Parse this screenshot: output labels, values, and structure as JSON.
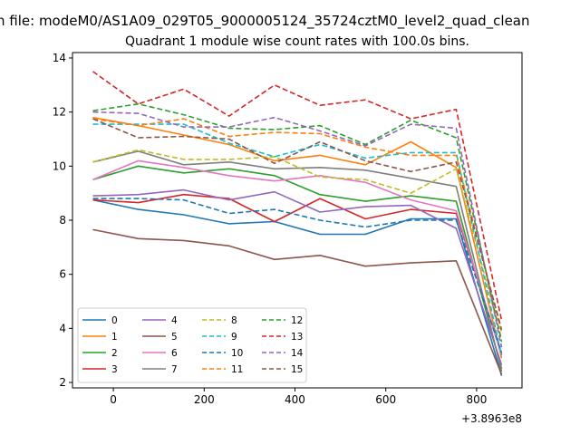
{
  "chart_data": {
    "type": "line",
    "suptitle": "n file: modeM0/AS1A09_029T05_9000005124_35724cztM0_level2_quad_clean",
    "title": "Quadrant 1 module wise count rates with 100.0s bins.",
    "xlabel": "",
    "ylabel": "",
    "x_offset_label": "+3.8963e8",
    "xlim": [
      -90,
      900
    ],
    "ylim": [
      1.8,
      14.2
    ],
    "x_ticks": [
      0,
      200,
      400,
      600,
      800
    ],
    "y_ticks": [
      2,
      4,
      6,
      8,
      10,
      12,
      14
    ],
    "grid": false,
    "legend_position": "lower-left",
    "x": [
      -45,
      55,
      155,
      255,
      355,
      455,
      555,
      655,
      755,
      855
    ],
    "series": [
      {
        "name": "0",
        "color": "#1f77b4",
        "dash": "solid",
        "values": [
          8.75,
          8.4,
          8.2,
          7.87,
          7.95,
          7.48,
          7.48,
          8.05,
          8.05,
          2.25
        ]
      },
      {
        "name": "1",
        "color": "#ff7f0e",
        "dash": "solid",
        "values": [
          11.8,
          11.5,
          11.15,
          10.8,
          10.2,
          10.4,
          10.05,
          10.9,
          9.95,
          2.9
        ]
      },
      {
        "name": "2",
        "color": "#2ca02c",
        "dash": "solid",
        "values": [
          9.5,
          10.0,
          9.75,
          9.9,
          9.65,
          8.95,
          8.7,
          8.9,
          8.7,
          2.5
        ]
      },
      {
        "name": "3",
        "color": "#d62728",
        "dash": "solid",
        "values": [
          8.75,
          8.65,
          8.95,
          8.8,
          7.95,
          8.8,
          8.05,
          8.4,
          8.25,
          3.05
        ]
      },
      {
        "name": "4",
        "color": "#9467bd",
        "dash": "solid",
        "values": [
          8.9,
          8.95,
          9.12,
          8.75,
          9.05,
          8.3,
          8.5,
          8.55,
          7.7,
          2.65
        ]
      },
      {
        "name": "5",
        "color": "#8c564b",
        "dash": "solid",
        "values": [
          7.65,
          7.32,
          7.25,
          7.05,
          6.55,
          6.7,
          6.3,
          6.42,
          6.5,
          2.3
        ]
      },
      {
        "name": "6",
        "color": "#e377c2",
        "dash": "solid",
        "values": [
          9.5,
          10.2,
          9.95,
          9.65,
          9.45,
          9.65,
          9.4,
          8.75,
          8.35,
          3.0
        ]
      },
      {
        "name": "7",
        "color": "#7f7f7f",
        "dash": "solid",
        "values": [
          10.15,
          10.55,
          10.05,
          10.15,
          9.9,
          9.95,
          9.85,
          9.55,
          9.25,
          2.4
        ]
      },
      {
        "name": "8",
        "color": "#bcbd22",
        "dash": "dashed",
        "values": [
          10.15,
          10.6,
          10.25,
          10.25,
          10.35,
          9.6,
          9.5,
          9.0,
          9.9,
          3.6
        ]
      },
      {
        "name": "9",
        "color": "#17becf",
        "dash": "dashed",
        "values": [
          11.55,
          11.55,
          11.55,
          10.85,
          10.35,
          10.8,
          10.3,
          10.5,
          10.5,
          3.0
        ]
      },
      {
        "name": "10",
        "color": "#1f77b4",
        "dash": "dashed",
        "values": [
          8.8,
          8.8,
          8.75,
          8.25,
          8.4,
          8.0,
          7.75,
          8.0,
          8.0,
          3.1
        ]
      },
      {
        "name": "11",
        "color": "#ff7f0e",
        "dash": "dashed",
        "values": [
          11.75,
          11.5,
          11.75,
          11.1,
          11.25,
          11.2,
          10.7,
          10.4,
          10.4,
          3.85
        ]
      },
      {
        "name": "12",
        "color": "#2ca02c",
        "dash": "dashed",
        "values": [
          12.05,
          12.3,
          11.9,
          11.4,
          11.35,
          11.5,
          10.8,
          11.7,
          11.05,
          3.5
        ]
      },
      {
        "name": "13",
        "color": "#d62728",
        "dash": "dashed",
        "values": [
          13.5,
          12.3,
          12.85,
          11.85,
          13.0,
          12.25,
          12.45,
          11.75,
          12.1,
          4.3
        ]
      },
      {
        "name": "14",
        "color": "#9467bd",
        "dash": "dashed",
        "values": [
          12.0,
          11.95,
          11.45,
          11.45,
          11.8,
          11.3,
          10.75,
          11.55,
          11.4,
          3.3
        ]
      },
      {
        "name": "15",
        "color": "#8c564b",
        "dash": "dashed",
        "values": [
          11.75,
          11.05,
          11.1,
          11.0,
          10.1,
          10.9,
          10.2,
          9.8,
          10.15,
          3.95
        ]
      }
    ]
  }
}
